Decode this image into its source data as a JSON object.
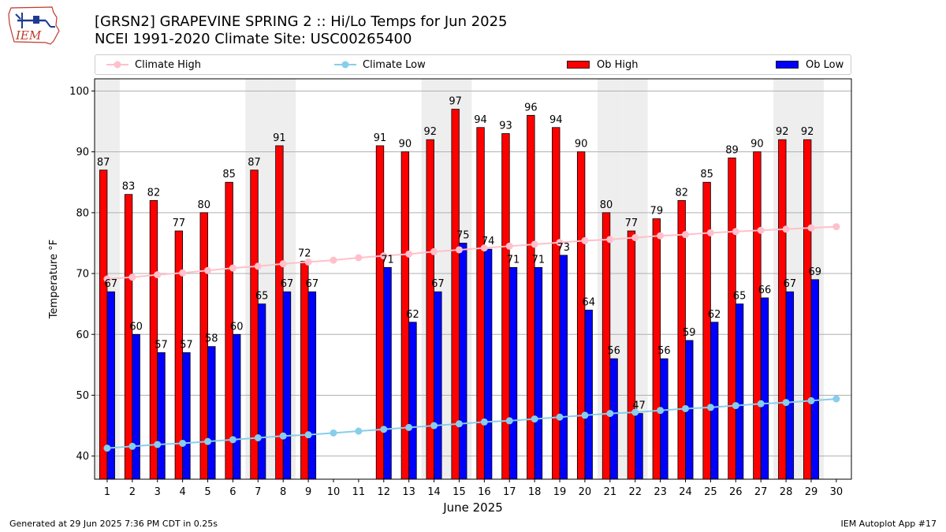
{
  "header": {
    "title_line1": "[GRSN2] GRAPEVINE SPRING 2 :: Hi/Lo Temps for Jun 2025",
    "title_line2": "NCEI 1991-2020 Climate Site: USC00265400"
  },
  "logo": {
    "text": "IEM"
  },
  "footer": {
    "generated": "Generated at 29 Jun 2025 7:36 PM CDT in 0.25s",
    "app": "IEM Autoplot App #17"
  },
  "colors": {
    "ob_high": "#ff0000",
    "ob_low": "#0000ff",
    "climate_high": "#ffc0cb",
    "climate_low": "#87ceeb",
    "weekend_band": "#eeeeee",
    "grid": "#b0b0b0"
  },
  "legend": {
    "climate_high": "Climate High",
    "climate_low": "Climate Low",
    "ob_high": "Ob High",
    "ob_low": "Ob Low"
  },
  "chart_data": {
    "type": "bar",
    "xlabel": "June 2025",
    "ylabel": "Temperature °F",
    "ylim": [
      36.2,
      102
    ],
    "yticks": [
      40,
      50,
      60,
      70,
      80,
      90,
      100
    ],
    "grid": "horizontal",
    "legend_placement": "top",
    "categories": [
      "1",
      "2",
      "3",
      "4",
      "5",
      "6",
      "7",
      "8",
      "9",
      "10",
      "11",
      "12",
      "13",
      "14",
      "15",
      "16",
      "17",
      "18",
      "19",
      "20",
      "21",
      "22",
      "23",
      "24",
      "25",
      "26",
      "27",
      "28",
      "29",
      "30"
    ],
    "weekend_days": [
      1,
      7,
      8,
      14,
      15,
      21,
      22,
      28,
      29
    ],
    "series": [
      {
        "name": "Ob High",
        "kind": "bar",
        "values": [
          87,
          83,
          82,
          77,
          80,
          85,
          87,
          91,
          72,
          null,
          null,
          91,
          90,
          92,
          97,
          94,
          93,
          96,
          94,
          90,
          80,
          77,
          79,
          82,
          85,
          89,
          90,
          92,
          92,
          null
        ]
      },
      {
        "name": "Ob Low",
        "kind": "bar",
        "values": [
          67,
          60,
          57,
          57,
          58,
          60,
          65,
          67,
          67,
          null,
          null,
          71,
          62,
          67,
          75,
          74,
          71,
          71,
          73,
          64,
          56,
          47,
          56,
          59,
          62,
          65,
          66,
          67,
          69,
          null
        ]
      },
      {
        "name": "Climate High",
        "kind": "line",
        "values": [
          69.1,
          69.4,
          69.8,
          70.1,
          70.5,
          70.9,
          71.2,
          71.6,
          71.9,
          72.2,
          72.6,
          72.9,
          73.2,
          73.6,
          73.9,
          74.2,
          74.5,
          74.8,
          75.1,
          75.4,
          75.6,
          75.9,
          76.2,
          76.4,
          76.7,
          76.9,
          77.1,
          77.3,
          77.5,
          77.7
        ]
      },
      {
        "name": "Climate Low",
        "kind": "line",
        "values": [
          41.3,
          41.6,
          41.9,
          42.1,
          42.4,
          42.7,
          43.0,
          43.3,
          43.5,
          43.8,
          44.1,
          44.4,
          44.7,
          45.0,
          45.3,
          45.6,
          45.8,
          46.1,
          46.4,
          46.7,
          47.0,
          47.2,
          47.5,
          47.8,
          48.0,
          48.3,
          48.6,
          48.8,
          49.1,
          49.4
        ]
      }
    ]
  }
}
